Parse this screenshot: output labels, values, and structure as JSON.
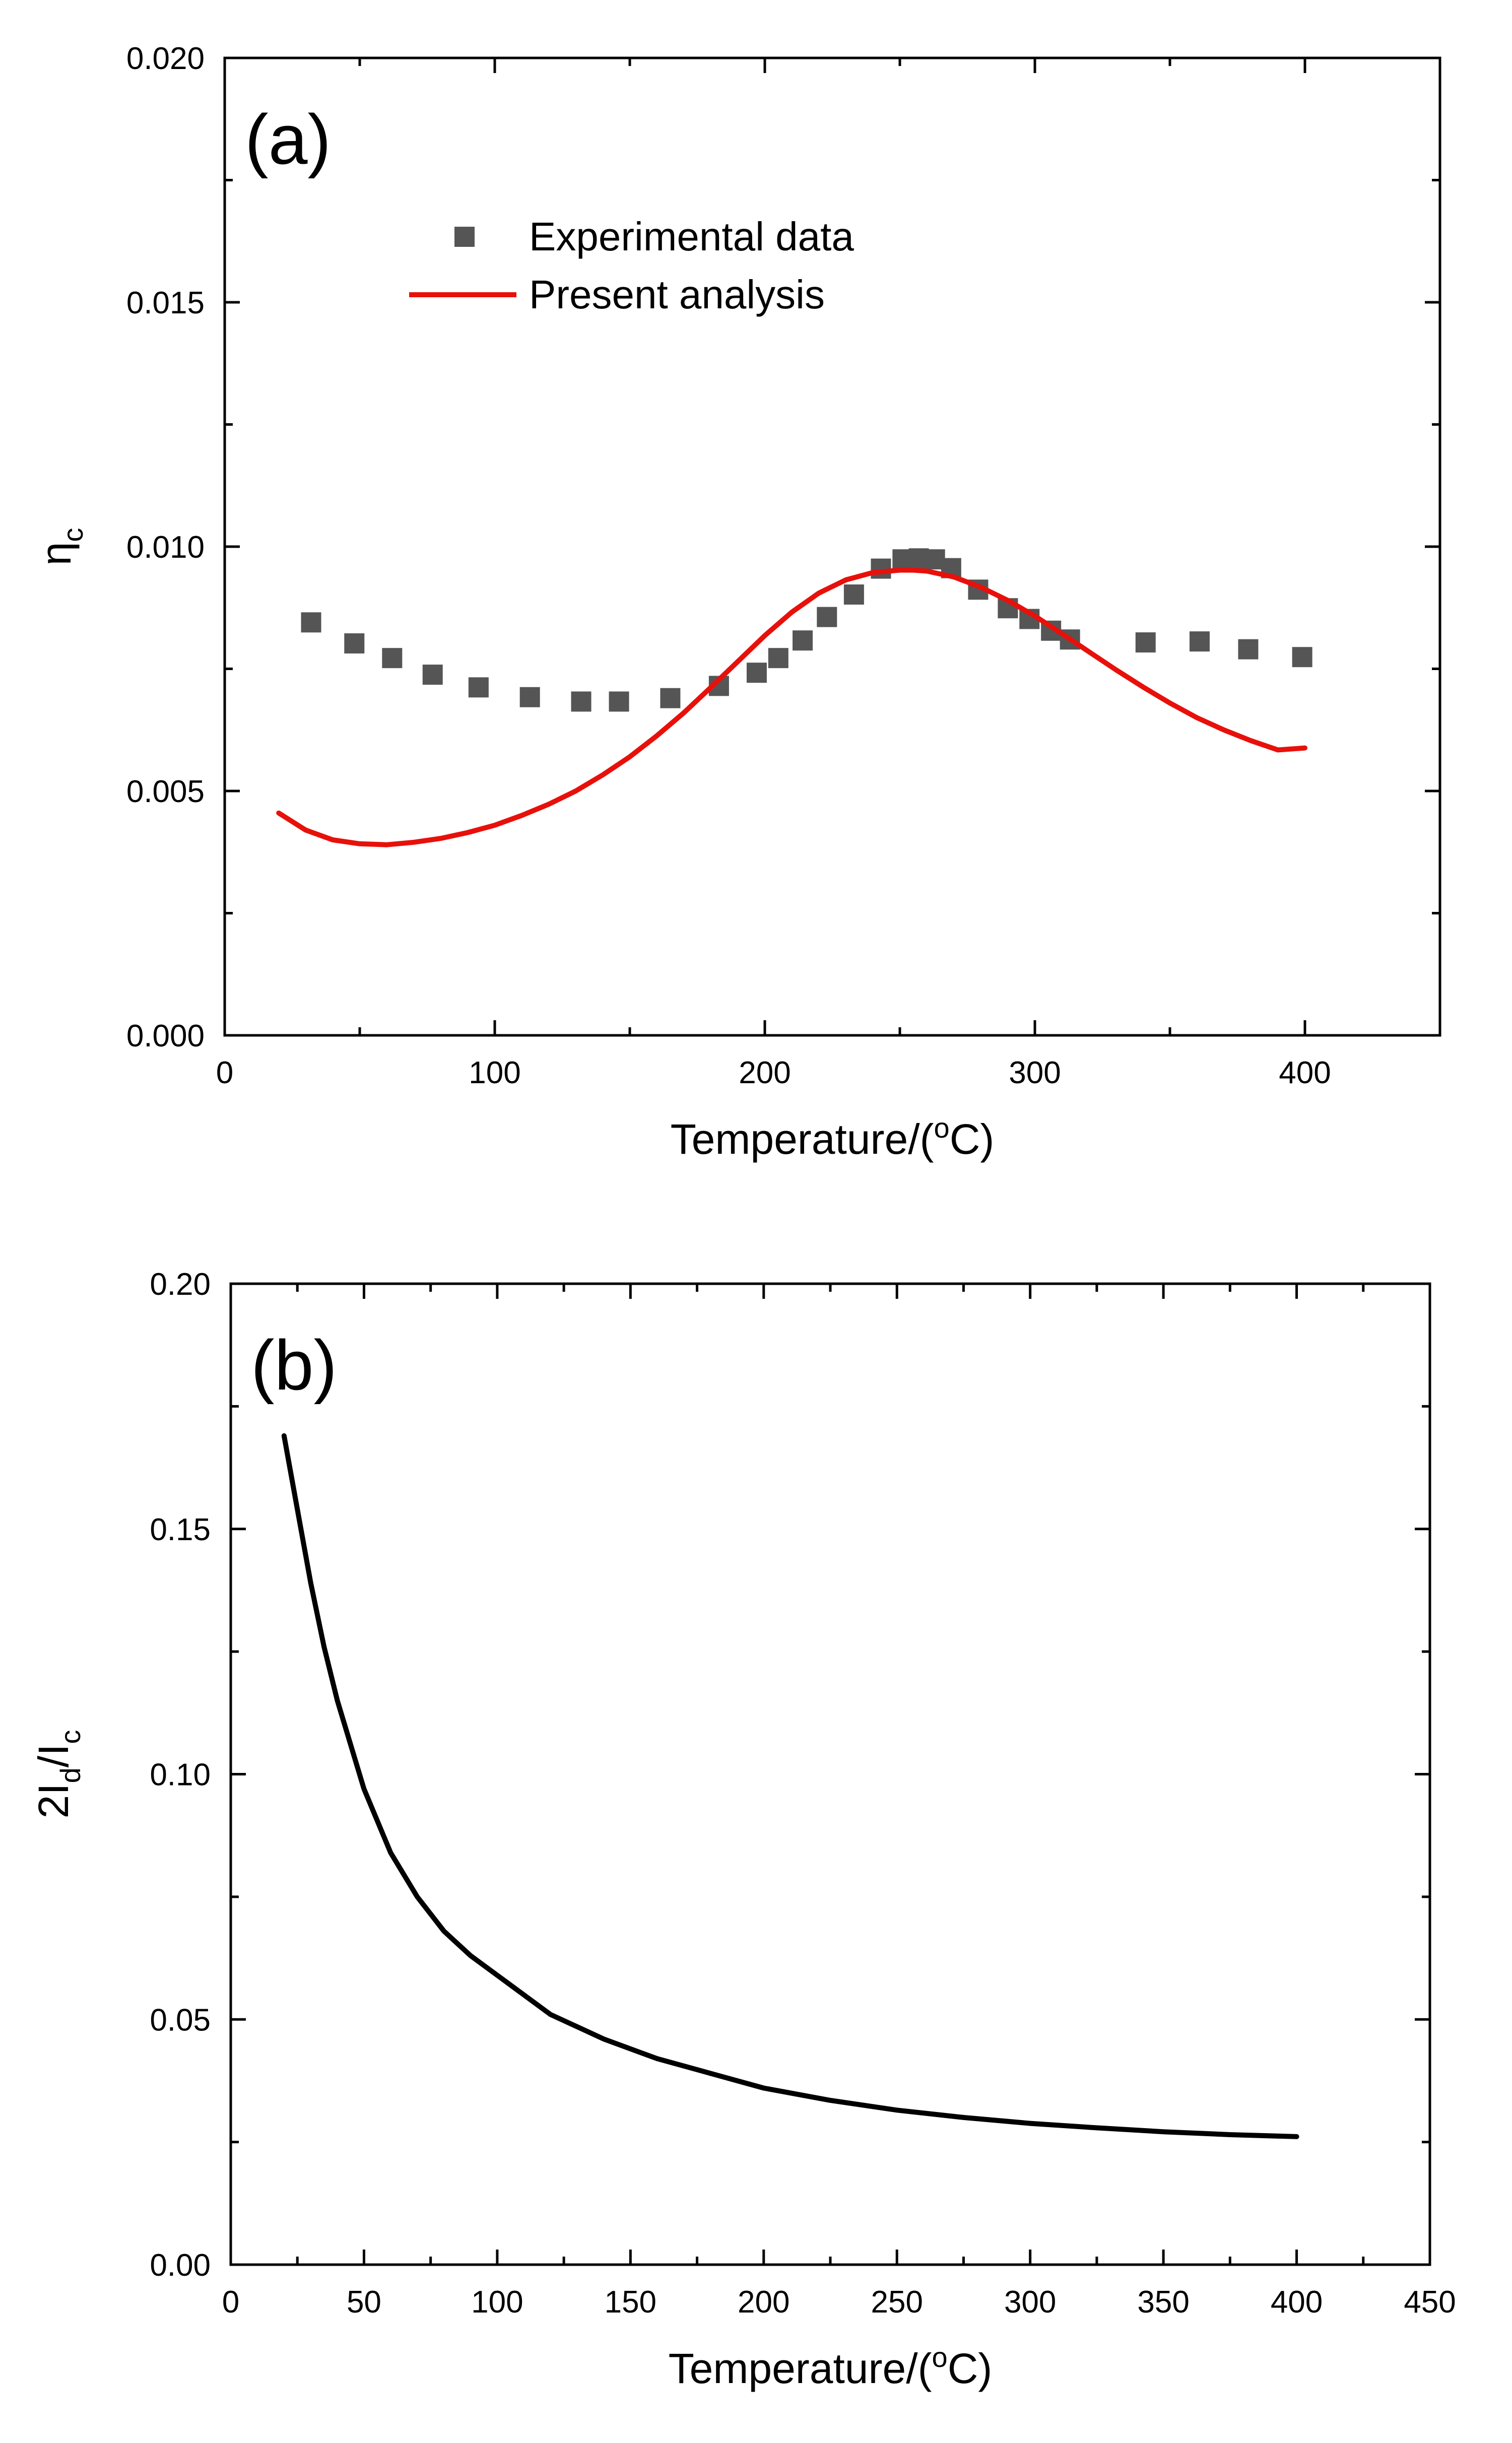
{
  "chart_data": [
    {
      "type": "scatter",
      "panel_label": "(a)",
      "title": "",
      "xlabel": {
        "prefix": "Temperature/(",
        "sup": "o",
        "suffix": "C)"
      },
      "ylabel": {
        "main": "η",
        "sub": "c"
      },
      "xlim": [
        0,
        450
      ],
      "ylim": [
        0.0,
        0.02
      ],
      "xticks": [
        0,
        100,
        200,
        300,
        400
      ],
      "xtick_labels": [
        "0",
        "100",
        "200",
        "300",
        "400"
      ],
      "yticks": [
        0.0,
        0.005,
        0.01,
        0.015,
        0.02
      ],
      "ytick_labels": [
        "0.000",
        "0.005",
        "0.010",
        "0.015",
        "0.020"
      ],
      "legend_position": "top-left",
      "grid": false,
      "series": [
        {
          "name": "Experimental data",
          "kind": "scatter",
          "marker": "square",
          "color": "#555555",
          "x": [
            32,
            48,
            62,
            77,
            94,
            113,
            132,
            146,
            165,
            183,
            197,
            205,
            214,
            223,
            233,
            243,
            251,
            257,
            263,
            269,
            279,
            290,
            298,
            306,
            313,
            341,
            361,
            379,
            399
          ],
          "y": [
            0.00845,
            0.00802,
            0.00772,
            0.00738,
            0.00712,
            0.00692,
            0.00683,
            0.00683,
            0.0069,
            0.00715,
            0.00742,
            0.00772,
            0.00808,
            0.00856,
            0.00902,
            0.00955,
            0.00974,
            0.00976,
            0.00974,
            0.00956,
            0.00912,
            0.00874,
            0.00852,
            0.00828,
            0.0081,
            0.00804,
            0.00806,
            0.0079,
            0.00774
          ]
        },
        {
          "name": "Present analysis",
          "kind": "line",
          "color": "#e8100a",
          "x": [
            20,
            30,
            40,
            50,
            60,
            70,
            80,
            90,
            100,
            110,
            120,
            130,
            140,
            150,
            160,
            170,
            180,
            190,
            200,
            210,
            220,
            230,
            240,
            250,
            255,
            260,
            270,
            280,
            290,
            300,
            310,
            320,
            330,
            340,
            350,
            360,
            370,
            380,
            390,
            400
          ],
          "y": [
            0.00455,
            0.0042,
            0.004,
            0.00392,
            0.0039,
            0.00395,
            0.00403,
            0.00415,
            0.0043,
            0.0045,
            0.00473,
            0.005,
            0.00533,
            0.0057,
            0.00613,
            0.0066,
            0.00712,
            0.00765,
            0.00818,
            0.00866,
            0.00905,
            0.00932,
            0.00947,
            0.00952,
            0.00952,
            0.0095,
            0.00938,
            0.00917,
            0.0089,
            0.00858,
            0.00822,
            0.00785,
            0.00748,
            0.00713,
            0.0068,
            0.0065,
            0.00625,
            0.00603,
            0.00584,
            0.00588
          ]
        }
      ]
    },
    {
      "type": "line",
      "panel_label": "(b)",
      "title": "",
      "xlabel": {
        "prefix": "Temperature/(",
        "sup": "o",
        "suffix": "C)"
      },
      "ylabel": {
        "a": "2I",
        "a_sub": "d",
        "b": "/I",
        "b_sub": "c"
      },
      "xlim": [
        0,
        450
      ],
      "ylim": [
        0.0,
        0.2
      ],
      "xticks": [
        0,
        50,
        100,
        150,
        200,
        250,
        300,
        350,
        400,
        450
      ],
      "xtick_labels": [
        "0",
        "50",
        "100",
        "150",
        "200",
        "250",
        "300",
        "350",
        "400",
        "450"
      ],
      "yticks": [
        0.0,
        0.05,
        0.1,
        0.15,
        0.2
      ],
      "ytick_labels": [
        "0.00",
        "0.05",
        "0.10",
        "0.15",
        "0.20"
      ],
      "grid": false,
      "series": [
        {
          "name": "2Id/Ic",
          "kind": "line",
          "color": "#000000",
          "x": [
            20,
            25,
            30,
            35,
            40,
            50,
            60,
            70,
            80,
            90,
            100,
            120,
            140,
            160,
            180,
            200,
            225,
            250,
            275,
            300,
            325,
            350,
            375,
            400
          ],
          "y": [
            0.169,
            0.154,
            0.139,
            0.126,
            0.115,
            0.097,
            0.084,
            0.075,
            0.068,
            0.063,
            0.059,
            0.051,
            0.046,
            0.042,
            0.039,
            0.036,
            0.0335,
            0.0315,
            0.03,
            0.0288,
            0.0279,
            0.0271,
            0.0265,
            0.0261
          ]
        }
      ]
    }
  ]
}
